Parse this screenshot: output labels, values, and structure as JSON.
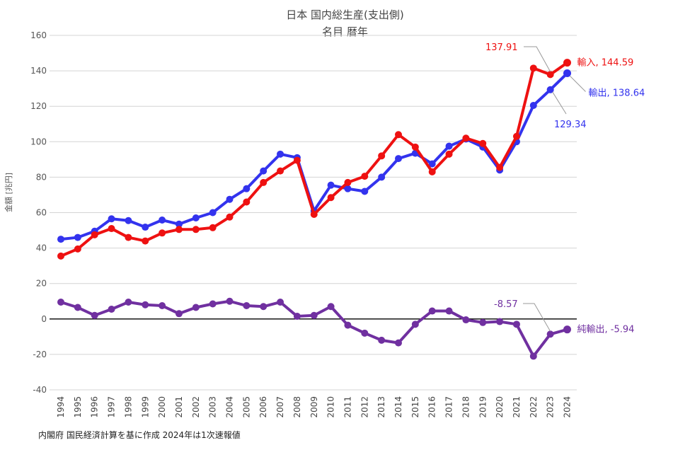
{
  "chart_data": {
    "type": "line",
    "title": "日本 国内総生産(支出側)",
    "subtitle": "名目 暦年",
    "ylabel": "金額 [兆円]",
    "ylim": [
      -40,
      160
    ],
    "yticks": [
      -40,
      -20,
      0,
      20,
      40,
      60,
      80,
      100,
      120,
      140,
      160
    ],
    "grid": true,
    "x": [
      "1994",
      "1995",
      "1996",
      "1997",
      "1998",
      "1999",
      "2000",
      "2001",
      "2002",
      "2003",
      "2004",
      "2005",
      "2006",
      "2007",
      "2008",
      "2009",
      "2010",
      "2011",
      "2012",
      "2013",
      "2014",
      "2015",
      "2016",
      "2017",
      "2018",
      "2019",
      "2020",
      "2021",
      "2022",
      "2023",
      "2024"
    ],
    "series": [
      {
        "name": "輸出",
        "color": "#3333ee",
        "values": [
          45.0,
          46.0,
          49.5,
          56.5,
          55.5,
          51.8,
          55.8,
          53.5,
          57.0,
          60.0,
          67.5,
          73.5,
          83.5,
          93.0,
          91.0,
          61.0,
          75.5,
          73.5,
          72.0,
          80.0,
          90.5,
          93.5,
          87.5,
          97.5,
          101.5,
          97.0,
          84.0,
          100.0,
          120.5,
          129.34,
          138.64
        ],
        "end_label": "輸出, 138.64"
      },
      {
        "name": "輸入",
        "color": "#ee1111",
        "values": [
          35.5,
          39.5,
          47.5,
          51.0,
          46.0,
          44.0,
          48.5,
          50.5,
          50.5,
          51.5,
          57.5,
          66.0,
          77.0,
          83.5,
          89.5,
          59.0,
          68.5,
          77.0,
          80.5,
          92.0,
          104.0,
          97.0,
          83.0,
          93.0,
          102.0,
          99.0,
          85.5,
          103.0,
          141.5,
          137.91,
          144.59
        ],
        "end_label": "輸入, 144.59"
      },
      {
        "name": "純輸出",
        "color": "#7030a0",
        "values": [
          9.5,
          6.5,
          2.0,
          5.5,
          9.5,
          8.0,
          7.5,
          3.0,
          6.5,
          8.5,
          10.0,
          7.5,
          7.0,
          9.5,
          1.5,
          2.0,
          7.0,
          -3.5,
          -8.0,
          -12.0,
          -13.5,
          -3.0,
          4.5,
          4.5,
          -0.5,
          -2.0,
          -1.5,
          -3.0,
          -21.0,
          -8.57,
          -5.94
        ],
        "end_label": "純輸出, -5.94"
      }
    ],
    "callouts": [
      {
        "series": 1,
        "index": 29,
        "label": "137.91"
      },
      {
        "series": 0,
        "index": 29,
        "label": "129.34"
      },
      {
        "series": 2,
        "index": 29,
        "label": "-8.57"
      }
    ],
    "source": "内閣府 国民経済計算を基に作成 2024年は1次速報値"
  }
}
